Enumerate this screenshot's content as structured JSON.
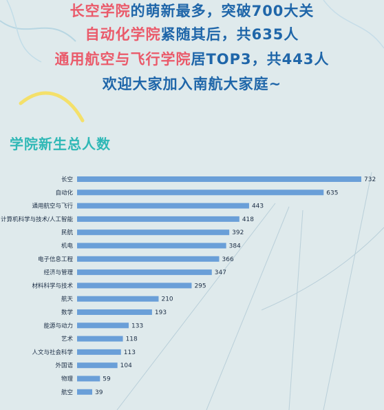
{
  "headline": {
    "line1": {
      "highlight": "长空学院",
      "text": "的萌新最多，突破700大关"
    },
    "line2": {
      "highlight": "自动化学院",
      "text": "紧随其后，共635人"
    },
    "line3": {
      "highlight": "通用航空与飞行学院",
      "text": "居TOP3，共443人"
    },
    "line4": {
      "text": "欢迎大家加入南航大家庭~"
    }
  },
  "section_title": "学院新生总人数",
  "colors": {
    "background": "#dfeaec",
    "bar": "#6a9fd8",
    "highlight_text": "#ea5a6a",
    "headline_text": "#1f66a9",
    "section_title": "#2fb8b6",
    "label_text": "#1b2d45"
  },
  "chart_data": {
    "type": "bar",
    "orientation": "horizontal",
    "title": "学院新生总人数",
    "categories": [
      "长空",
      "自动化",
      "通用航空与飞行",
      "计算机科学与技术/人工智能",
      "民航",
      "机电",
      "电子信息工程",
      "经济与管理",
      "材料科学与技术",
      "航天",
      "数学",
      "能源与动力",
      "艺术",
      "人文与社会科学",
      "外国语",
      "物理",
      "航空"
    ],
    "values": [
      732,
      635,
      443,
      418,
      392,
      384,
      366,
      347,
      295,
      210,
      193,
      133,
      118,
      113,
      104,
      59,
      39
    ],
    "data_labels": true,
    "grid": false,
    "xlim": [
      0,
      732
    ]
  }
}
